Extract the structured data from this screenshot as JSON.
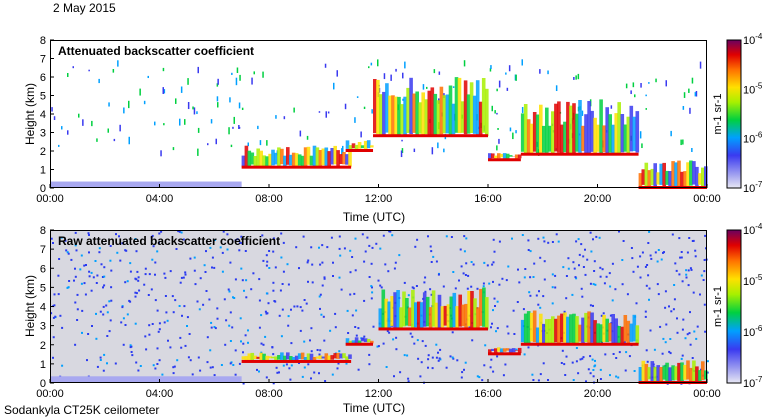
{
  "date": "2 May 2015",
  "instrument": "Sodankyla CT25K ceilometer",
  "chart_data": [
    {
      "type": "heatmap",
      "title": "Attenuated backscatter coefficient",
      "xlabel": "Time (UTC)",
      "ylabel": "Height (km)",
      "xlim": [
        0,
        24
      ],
      "ylim": [
        0,
        8
      ],
      "x_ticks": [
        "00:00",
        "04:00",
        "08:00",
        "12:00",
        "16:00",
        "20:00",
        "00:00"
      ],
      "y_ticks": [
        "0",
        "1",
        "2",
        "3",
        "4",
        "5",
        "6",
        "7",
        "8"
      ],
      "background": "#ffffff",
      "clouds": [
        {
          "t0": 7.0,
          "t1": 11.0,
          "base": 1.1,
          "top": 2.3
        },
        {
          "t0": 10.8,
          "t1": 11.8,
          "base": 2.0,
          "top": 2.6
        },
        {
          "t0": 11.8,
          "t1": 16.0,
          "base": 2.8,
          "top": 6.0
        },
        {
          "t0": 16.0,
          "t1": 17.2,
          "base": 1.5,
          "top": 1.9
        },
        {
          "t0": 17.2,
          "t1": 21.5,
          "base": 1.8,
          "top": 4.8
        },
        {
          "t0": 21.5,
          "t1": 24.0,
          "base": 0.0,
          "top": 1.5
        }
      ],
      "colorbar": {
        "min": "10^-7",
        "max": "10^-4",
        "scale": "log",
        "label": "m^-1 sr^-1",
        "ticks": [
          "10^-7",
          "10^-6",
          "10^-5",
          "10^-4"
        ]
      }
    },
    {
      "type": "heatmap",
      "title": "Raw attenuated backscatter coefficient",
      "xlabel": "Time (UTC)",
      "ylabel": "Height (km)",
      "xlim": [
        0,
        24
      ],
      "ylim": [
        0,
        8
      ],
      "x_ticks": [
        "00:00",
        "04:00",
        "08:00",
        "12:00",
        "16:00",
        "20:00",
        "00:00"
      ],
      "y_ticks": [
        "0",
        "1",
        "2",
        "3",
        "4",
        "5",
        "6",
        "7",
        "8"
      ],
      "background": "#d8d8e0",
      "clouds": [
        {
          "t0": 7.0,
          "t1": 11.0,
          "base": 1.1,
          "top": 1.6
        },
        {
          "t0": 10.8,
          "t1": 11.8,
          "base": 2.0,
          "top": 2.4
        },
        {
          "t0": 12.0,
          "t1": 16.0,
          "base": 2.8,
          "top": 5.0
        },
        {
          "t0": 16.0,
          "t1": 17.2,
          "base": 1.5,
          "top": 1.9
        },
        {
          "t0": 17.2,
          "t1": 21.5,
          "base": 2.0,
          "top": 3.8
        },
        {
          "t0": 21.5,
          "t1": 24.0,
          "base": 0.0,
          "top": 1.2
        }
      ],
      "colorbar": {
        "min": "10^-7",
        "max": "10^-4",
        "scale": "log",
        "label": "m^-1 sr^-1",
        "ticks": [
          "10^-7",
          "10^-6",
          "10^-5",
          "10^-4"
        ]
      }
    }
  ]
}
